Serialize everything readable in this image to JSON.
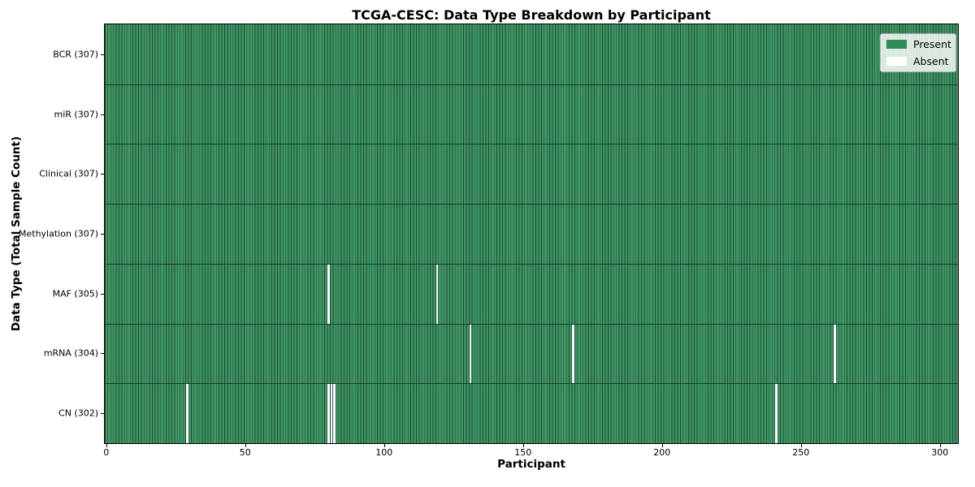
{
  "chart_data": {
    "type": "heatmap",
    "title": "TCGA-CESC: Data Type Breakdown by Participant",
    "xlabel": "Participant",
    "ylabel": "Data Type (Total Sample Count)",
    "n_participants": 307,
    "x_range": [
      -0.5,
      306.5
    ],
    "x_ticks": [
      0,
      50,
      100,
      150,
      200,
      250,
      300
    ],
    "grid": false,
    "legend_position": "upper right",
    "rows": [
      {
        "label": "BCR (307)",
        "data_type": "BCR",
        "present_count": 307,
        "absent_participants": []
      },
      {
        "label": "miR (307)",
        "data_type": "miR",
        "present_count": 307,
        "absent_participants": []
      },
      {
        "label": "Clinical (307)",
        "data_type": "Clinical",
        "present_count": 307,
        "absent_participants": []
      },
      {
        "label": "Methylation (307)",
        "data_type": "Methylation",
        "present_count": 307,
        "absent_participants": []
      },
      {
        "label": "MAF (305)",
        "data_type": "MAF",
        "present_count": 305,
        "absent_participants": [
          80,
          119
        ]
      },
      {
        "label": "mRNA (304)",
        "data_type": "mRNA",
        "present_count": 304,
        "absent_participants": [
          131,
          168,
          262
        ]
      },
      {
        "label": "CN (302)",
        "data_type": "CN",
        "present_count": 302,
        "absent_participants": [
          29,
          80,
          81,
          82,
          241
        ]
      }
    ],
    "colors": {
      "present": "#3f9464",
      "absent": "#ffffff",
      "cell_edge": "#1d4d33",
      "row_separator": "#163d28",
      "frame": "#000000",
      "legend_present_swatch": "#2e8b57"
    }
  },
  "legend": [
    {
      "label": "Present",
      "color": "#2e8b57"
    },
    {
      "label": "Absent",
      "color": "#ffffff"
    }
  ]
}
